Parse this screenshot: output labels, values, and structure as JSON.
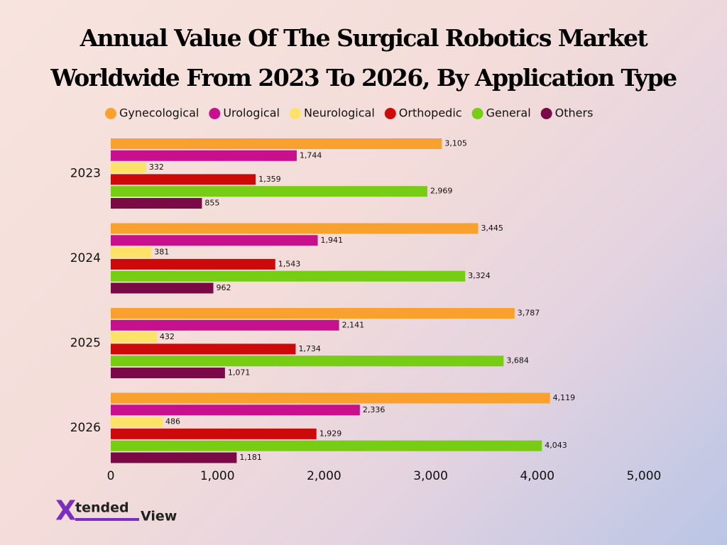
{
  "chart_data": {
    "type": "grouped-hbar",
    "title": [
      "Annual Value Of The Surgical Robotics Market",
      "Worldwide From 2023 To 2026, By Application Type"
    ],
    "categories": [
      "2023",
      "2024",
      "2025",
      "2026"
    ],
    "series": [
      {
        "name": "Gynecological",
        "color": "#f9a12e",
        "values": [
          3105,
          3445,
          3787,
          4119
        ],
        "value_labels": [
          "3,105",
          "3,445",
          "3,787",
          "4,119"
        ]
      },
      {
        "name": "Urological",
        "color": "#c8108c",
        "values": [
          1744,
          1941,
          2141,
          2336
        ],
        "value_labels": [
          "1,744",
          "1,941",
          "2,141",
          "2,336"
        ]
      },
      {
        "name": "Neurological",
        "color": "#fde26a",
        "values": [
          332,
          381,
          432,
          486
        ]
      },
      {
        "name": "Orthopedic",
        "color": "#cc0a0a",
        "values": [
          1359,
          1543,
          1734,
          1929
        ],
        "value_labels": [
          "1,359",
          "1,543",
          "1,734",
          "1,929"
        ]
      },
      {
        "name": "General",
        "color": "#77cc14",
        "values": [
          2969,
          3324,
          3684,
          4043
        ],
        "value_labels": [
          "2,969",
          "3,324",
          "3,684",
          "4,043"
        ]
      },
      {
        "name": "Others",
        "color": "#7a0a45",
        "values": [
          855,
          962,
          1071,
          1181
        ],
        "value_labels": [
          "855",
          "962",
          "1,071",
          "1,181"
        ]
      }
    ],
    "xlim": [
      0,
      5000
    ],
    "xticks": [
      0,
      {
        "value": 1000,
        "label": "1,000"
      },
      {
        "value": 2000,
        "label": "2,000"
      },
      {
        "value": 3000,
        "label": "3,000"
      },
      {
        "value": 4000,
        "label": "4,000"
      },
      {
        "value": 5000,
        "label": "5,000"
      }
    ],
    "legend": "top"
  },
  "logo": {
    "mark": "X",
    "parts": [
      "tended",
      "View"
    ]
  }
}
